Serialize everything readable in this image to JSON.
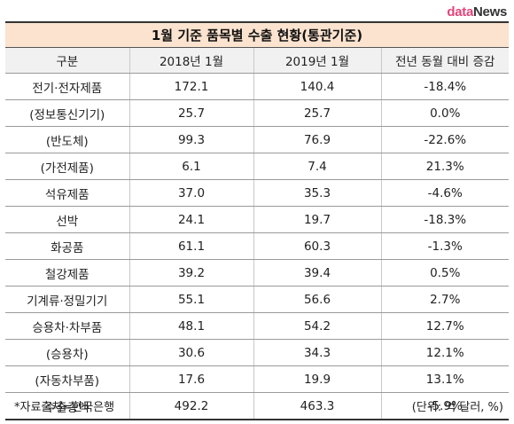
{
  "logo": {
    "part1": "data",
    "part2": "News"
  },
  "title": "1월 기준 품목별 수출 현황(통관기준)",
  "table": {
    "headers": [
      "구분",
      "2018년 1월",
      "2019년 1월",
      "전년 동월 대비 증감"
    ],
    "rows": [
      [
        "전기·전자제품",
        "172.1",
        "140.4",
        "-18.4%"
      ],
      [
        "(정보통신기기)",
        "25.7",
        "25.7",
        "0.0%"
      ],
      [
        "(반도체)",
        "99.3",
        "76.9",
        "-22.6%"
      ],
      [
        "(가전제품)",
        "6.1",
        "7.4",
        "21.3%"
      ],
      [
        "석유제품",
        "37.0",
        "35.3",
        "-4.6%"
      ],
      [
        "선박",
        "24.1",
        "19.7",
        "-18.3%"
      ],
      [
        "화공품",
        "61.1",
        "60.3",
        "-1.3%"
      ],
      [
        "철강제품",
        "39.2",
        "39.4",
        "0.5%"
      ],
      [
        "기계류·정밀기기",
        "55.1",
        "56.6",
        "2.7%"
      ],
      [
        "승용차·차부품",
        "48.1",
        "54.2",
        "12.7%"
      ],
      [
        "(승용차)",
        "30.6",
        "34.3",
        "12.1%"
      ],
      [
        "(자동차부품)",
        "17.6",
        "19.9",
        "13.1%"
      ],
      [
        "수출총액",
        "492.2",
        "463.3",
        "-5.9%"
      ]
    ]
  },
  "footer": {
    "source": "*자료출처=한국은행",
    "unit": "(단위: 억 달러, %)"
  }
}
